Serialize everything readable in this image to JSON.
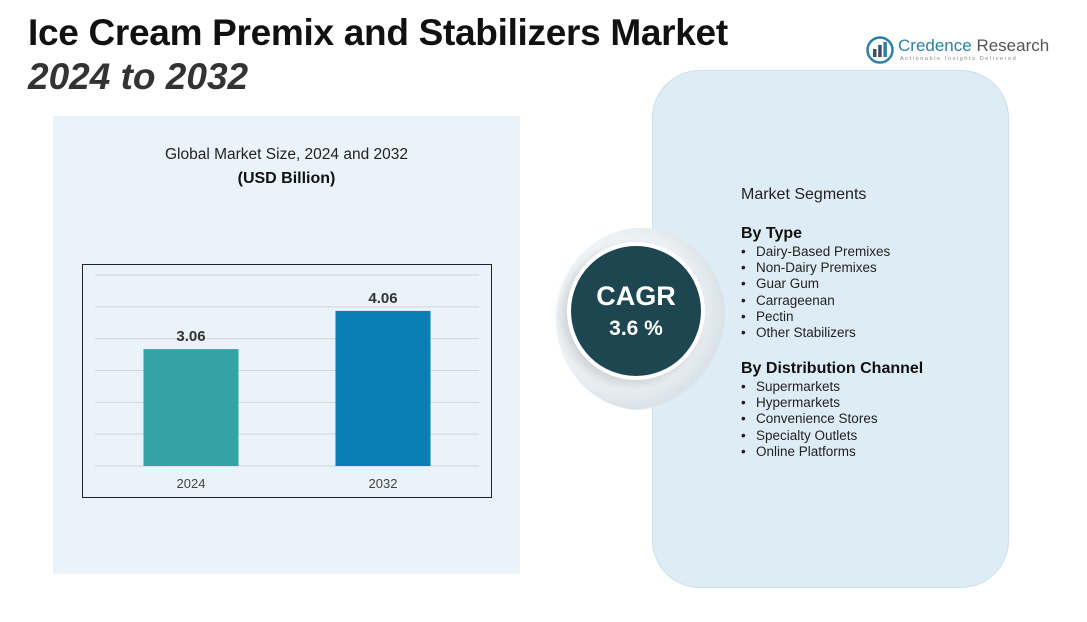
{
  "header": {
    "title_line1": "Ice Cream Premix and Stabilizers Market",
    "title_line2": "2024 to 2032"
  },
  "logo": {
    "name_part1": "Credence",
    "name_part2": " Research",
    "tagline": "Actionable Insights Delivered",
    "icon": "bar-chart-logo-icon"
  },
  "chart_data": {
    "type": "bar",
    "title": "Global Market Size, 2024 and 2032",
    "subtitle": "(USD Billion)",
    "categories": [
      "2024",
      "2032"
    ],
    "values": [
      3.06,
      4.06
    ],
    "value_labels": [
      "3.06",
      "4.06"
    ],
    "colors": [
      "#33a3a3",
      "#0880b5"
    ],
    "xlabel": "",
    "ylabel": "",
    "ylim": [
      0,
      5
    ],
    "grid": true,
    "legend": "none"
  },
  "cagr": {
    "label": "CAGR",
    "value": "3.6 %",
    "color": "#1d4651"
  },
  "segments": {
    "heading": "Market Segments",
    "groups": [
      {
        "title": "By Type",
        "items": [
          "Dairy-Based Premixes",
          "Non-Dairy Premixes",
          "Guar Gum",
          "Carrageenan",
          "Pectin",
          "Other Stabilizers"
        ]
      },
      {
        "title": "By Distribution Channel",
        "items": [
          "Supermarkets",
          "Hypermarkets",
          "Convenience Stores",
          "Specialty Outlets",
          "Online Platforms"
        ]
      }
    ]
  }
}
